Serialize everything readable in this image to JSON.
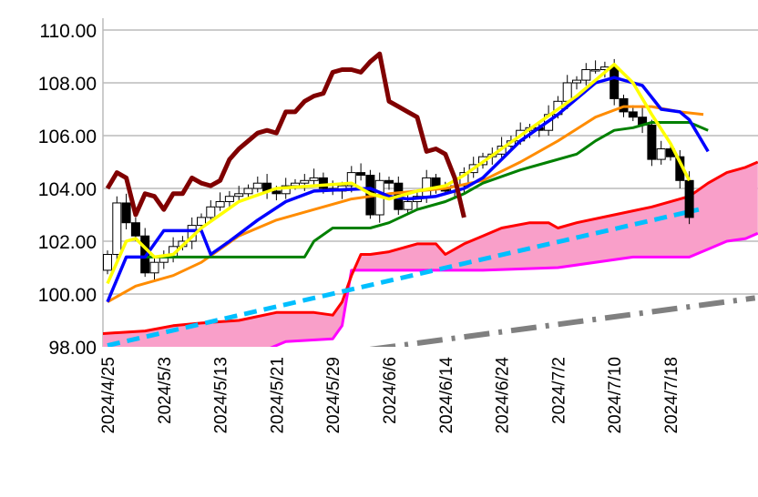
{
  "chart_data": {
    "type": "candlestick",
    "title": "",
    "ylim": [
      98,
      110
    ],
    "yticks": [
      "98.00",
      "100.00",
      "102.00",
      "104.00",
      "106.00",
      "108.00",
      "110.00"
    ],
    "xticks": [
      {
        "i": 0,
        "label": "2024/4/25"
      },
      {
        "i": 6,
        "label": "2024/5/3"
      },
      {
        "i": 12,
        "label": "2024/5/13"
      },
      {
        "i": 18,
        "label": "2024/5/21"
      },
      {
        "i": 24,
        "label": "2024/5/29"
      },
      {
        "i": 30,
        "label": "2024/6/6"
      },
      {
        "i": 36,
        "label": "2024/6/14"
      },
      {
        "i": 42,
        "label": "2024/6/24"
      },
      {
        "i": 48,
        "label": "2024/7/2"
      },
      {
        "i": 54,
        "label": "2024/7/10"
      },
      {
        "i": 60,
        "label": "2024/7/18"
      }
    ],
    "open_first": 100.9,
    "closes": [
      101.5,
      103.45,
      102.7,
      102.2,
      100.8,
      101.2,
      101.4,
      101.8,
      102.0,
      102.6,
      102.9,
      103.3,
      103.5,
      103.7,
      103.8,
      104.0,
      104.2,
      103.9,
      103.8,
      104.1,
      104.2,
      104.3,
      104.4,
      104.0,
      103.9,
      104.1,
      104.6,
      104.5,
      103.0,
      104.3,
      104.2,
      103.2,
      103.5,
      103.7,
      104.4,
      104.0,
      103.9,
      104.1,
      104.6,
      104.9,
      105.2,
      105.3,
      105.6,
      105.8,
      106.2,
      106.3,
      106.2,
      106.8,
      107.3,
      108.0,
      108.1,
      108.5,
      108.5,
      108.6,
      107.4,
      106.9,
      106.7,
      106.4,
      105.1,
      105.5,
      105.2,
      104.3,
      102.9
    ],
    "series": [
      {
        "name": "tenkan",
        "color": "#0000ff",
        "points": [
          [
            0,
            99.7
          ],
          [
            2,
            101.4
          ],
          [
            4,
            101.4
          ],
          [
            6,
            102.4
          ],
          [
            10,
            102.4
          ],
          [
            11,
            101.5
          ],
          [
            13,
            102.0
          ],
          [
            16,
            102.8
          ],
          [
            19,
            103.5
          ],
          [
            22,
            103.9
          ],
          [
            28,
            104.0
          ],
          [
            30,
            103.7
          ],
          [
            32,
            103.6
          ],
          [
            35,
            103.7
          ],
          [
            38,
            104.0
          ],
          [
            40,
            104.4
          ],
          [
            42,
            105.1
          ],
          [
            44,
            105.8
          ],
          [
            46,
            106.3
          ],
          [
            48,
            106.8
          ],
          [
            50,
            107.4
          ],
          [
            52,
            108.0
          ],
          [
            54,
            108.2
          ],
          [
            56,
            108.0
          ],
          [
            57,
            107.9
          ],
          [
            59,
            107.0
          ],
          [
            61,
            106.9
          ],
          [
            62,
            106.6
          ],
          [
            64,
            105.4
          ]
        ]
      },
      {
        "name": "kijun",
        "color": "#008000",
        "points": [
          [
            4,
            101.4
          ],
          [
            21,
            101.4
          ],
          [
            22,
            102.0
          ],
          [
            24,
            102.5
          ],
          [
            28,
            102.5
          ],
          [
            30,
            102.7
          ],
          [
            33,
            103.2
          ],
          [
            36,
            103.5
          ],
          [
            38,
            103.8
          ],
          [
            40,
            104.2
          ],
          [
            44,
            104.7
          ],
          [
            47,
            105.0
          ],
          [
            50,
            105.3
          ],
          [
            52,
            105.8
          ],
          [
            54,
            106.2
          ],
          [
            56,
            106.3
          ],
          [
            58,
            106.5
          ],
          [
            62,
            106.5
          ],
          [
            64,
            106.2
          ]
        ]
      },
      {
        "name": "ma-short",
        "color": "#ffff00",
        "points": [
          [
            0,
            100.4
          ],
          [
            2,
            102.0
          ],
          [
            3,
            102.1
          ],
          [
            5,
            101.4
          ],
          [
            7,
            101.5
          ],
          [
            10,
            102.5
          ],
          [
            14,
            103.5
          ],
          [
            18,
            104.0
          ],
          [
            22,
            104.1
          ],
          [
            26,
            104.2
          ],
          [
            28,
            103.8
          ],
          [
            30,
            103.6
          ],
          [
            33,
            103.9
          ],
          [
            36,
            104.1
          ],
          [
            38,
            104.5
          ],
          [
            42,
            105.5
          ],
          [
            46,
            106.5
          ],
          [
            50,
            107.5
          ],
          [
            53,
            108.4
          ],
          [
            54,
            108.7
          ],
          [
            56,
            108.0
          ],
          [
            58,
            106.8
          ],
          [
            60,
            105.7
          ],
          [
            62,
            104.3
          ]
        ]
      },
      {
        "name": "ma-long",
        "color": "#ff8c00",
        "points": [
          [
            0,
            99.7
          ],
          [
            3,
            100.3
          ],
          [
            7,
            100.7
          ],
          [
            10,
            101.2
          ],
          [
            14,
            102.2
          ],
          [
            18,
            102.8
          ],
          [
            22,
            103.2
          ],
          [
            26,
            103.6
          ],
          [
            30,
            103.8
          ],
          [
            36,
            104.0
          ],
          [
            40,
            104.3
          ],
          [
            44,
            105.0
          ],
          [
            48,
            105.8
          ],
          [
            52,
            106.7
          ],
          [
            55,
            107.1
          ],
          [
            58,
            107.1
          ],
          [
            61,
            106.9
          ],
          [
            63.5,
            106.8
          ]
        ]
      },
      {
        "name": "chikou",
        "color": "#800000",
        "points": [
          [
            0,
            104.0
          ],
          [
            1,
            104.6
          ],
          [
            2,
            104.4
          ],
          [
            3,
            103.0
          ],
          [
            4,
            103.8
          ],
          [
            5,
            103.7
          ],
          [
            6,
            103.2
          ],
          [
            7,
            103.8
          ],
          [
            8,
            103.8
          ],
          [
            9,
            104.4
          ],
          [
            10,
            104.2
          ],
          [
            11,
            104.1
          ],
          [
            12,
            104.3
          ],
          [
            13,
            105.1
          ],
          [
            14,
            105.5
          ],
          [
            15,
            105.8
          ],
          [
            16,
            106.1
          ],
          [
            17,
            106.2
          ],
          [
            18,
            106.1
          ],
          [
            19,
            106.9
          ],
          [
            20,
            106.9
          ],
          [
            21,
            107.3
          ],
          [
            22,
            107.5
          ],
          [
            23,
            107.6
          ],
          [
            24,
            108.4
          ],
          [
            25,
            108.5
          ],
          [
            26,
            108.5
          ],
          [
            27,
            108.4
          ],
          [
            28,
            108.8
          ],
          [
            29,
            109.1
          ],
          [
            30,
            107.3
          ],
          [
            31,
            107.1
          ],
          [
            32,
            106.9
          ],
          [
            33,
            106.7
          ],
          [
            34,
            105.4
          ],
          [
            35,
            105.5
          ],
          [
            36,
            105.3
          ],
          [
            37,
            104.4
          ],
          [
            38,
            102.9
          ]
        ]
      },
      {
        "name": "senkou-a",
        "color": "#ff0000",
        "points": [
          [
            -0.5,
            98.5
          ],
          [
            4,
            98.6
          ],
          [
            7,
            98.8
          ],
          [
            10,
            98.9
          ],
          [
            14,
            99.0
          ],
          [
            18,
            99.3
          ],
          [
            22,
            99.3
          ],
          [
            24,
            99.2
          ],
          [
            25,
            99.7
          ],
          [
            26,
            100.7
          ],
          [
            27,
            101.5
          ],
          [
            28,
            101.5
          ],
          [
            30,
            101.6
          ],
          [
            33,
            101.9
          ],
          [
            35,
            101.9
          ],
          [
            36,
            101.5
          ],
          [
            38,
            101.9
          ],
          [
            40,
            102.2
          ],
          [
            42,
            102.5
          ],
          [
            45,
            102.7
          ],
          [
            47,
            102.7
          ],
          [
            48,
            102.5
          ],
          [
            50,
            102.7
          ],
          [
            54,
            103.0
          ],
          [
            58,
            103.3
          ],
          [
            62,
            103.7
          ],
          [
            64,
            104.2
          ],
          [
            66,
            104.6
          ],
          [
            68,
            104.8
          ],
          [
            69.3,
            105.0
          ]
        ]
      },
      {
        "name": "senkou-b",
        "color": "#ff00ff",
        "points": [
          [
            -0.5,
            97.9
          ],
          [
            17,
            97.9
          ],
          [
            19,
            98.2
          ],
          [
            24,
            98.3
          ],
          [
            25,
            98.8
          ],
          [
            26,
            100.9
          ],
          [
            40,
            100.9
          ],
          [
            48,
            101.0
          ],
          [
            56,
            101.4
          ],
          [
            62,
            101.4
          ],
          [
            64,
            101.7
          ],
          [
            66,
            102.0
          ],
          [
            68,
            102.1
          ],
          [
            69.3,
            102.3
          ]
        ]
      },
      {
        "name": "trend-dashed",
        "color": "#00bfff",
        "points": [
          [
            0,
            98.05
          ],
          [
            63,
            103.2
          ]
        ]
      },
      {
        "name": "trend-dashdot",
        "color": "#808080",
        "points": [
          [
            28,
            97.9
          ],
          [
            69,
            99.85
          ]
        ]
      }
    ],
    "cloud_color": "#f99fc9"
  }
}
